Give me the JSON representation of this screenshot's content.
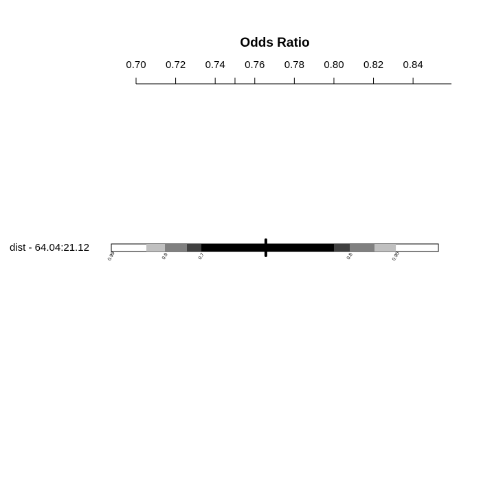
{
  "chart_data": {
    "type": "interval",
    "title": "Odds Ratio",
    "row_label": "dist - 64.04:21.12",
    "xlim": [
      0.7,
      0.8594
    ],
    "xticks": [
      {
        "value": 0.7,
        "label": "0.70"
      },
      {
        "value": 0.72,
        "label": "0.72"
      },
      {
        "value": 0.74,
        "label": "0.74"
      },
      {
        "value": 0.76,
        "label": "0.76"
      },
      {
        "value": 0.78,
        "label": "0.78"
      },
      {
        "value": 0.8,
        "label": "0.80"
      },
      {
        "value": 0.82,
        "label": "0.82"
      },
      {
        "value": 0.84,
        "label": "0.84"
      }
    ],
    "xminor": [
      0.75
    ],
    "estimate": 0.7656,
    "levels": [
      {
        "level": 0.99,
        "lower": 0.6875,
        "upper": 0.8528,
        "color": "#ffffff",
        "label_end": "lower"
      },
      {
        "level": 0.95,
        "lower": 0.7052,
        "upper": 0.8313,
        "color": "#c0c0c0",
        "label_end": "upper"
      },
      {
        "level": 0.9,
        "lower": 0.7146,
        "upper": 0.8205,
        "color": "#808080",
        "label_end": "lower"
      },
      {
        "level": 0.8,
        "lower": 0.7257,
        "upper": 0.808,
        "color": "#404040",
        "label_end": "upper"
      },
      {
        "level": 0.7,
        "lower": 0.733,
        "upper": 0.8,
        "color": "#000000",
        "label_end": "lower"
      }
    ]
  }
}
